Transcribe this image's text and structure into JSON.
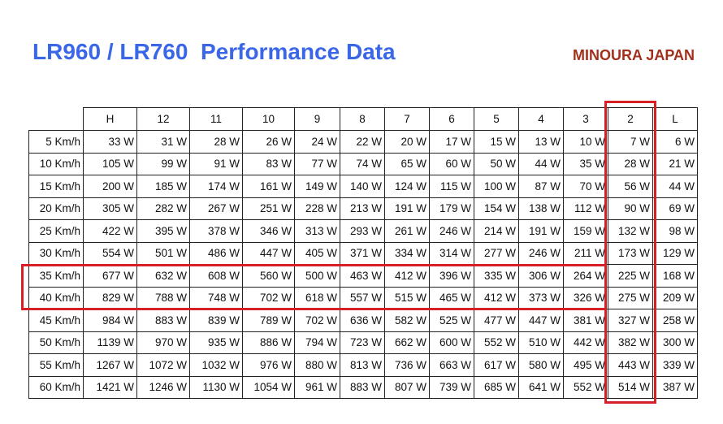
{
  "header": {
    "title": "LR960 / LR760  Performance Data",
    "brand": "MINOURA JAPAN"
  },
  "table": {
    "header": [
      "H",
      "12",
      "11",
      "10",
      "9",
      "8",
      "7",
      "6",
      "5",
      "4",
      "3",
      "2",
      "L"
    ],
    "rows": [
      {
        "label": "5 Km/h",
        "cells": [
          "33 W",
          "31 W",
          "28 W",
          "26 W",
          "24 W",
          "22 W",
          "20 W",
          "17 W",
          "15 W",
          "13 W",
          "10 W",
          "7 W",
          "6 W"
        ]
      },
      {
        "label": "10 Km/h",
        "cells": [
          "105 W",
          "99 W",
          "91 W",
          "83 W",
          "77 W",
          "74 W",
          "65 W",
          "60 W",
          "50 W",
          "44 W",
          "35 W",
          "28 W",
          "21 W"
        ]
      },
      {
        "label": "15 Km/h",
        "cells": [
          "200 W",
          "185 W",
          "174 W",
          "161 W",
          "149 W",
          "140 W",
          "124 W",
          "115 W",
          "100 W",
          "87 W",
          "70 W",
          "56 W",
          "44 W"
        ]
      },
      {
        "label": "20 Km/h",
        "cells": [
          "305 W",
          "282 W",
          "267 W",
          "251 W",
          "228 W",
          "213 W",
          "191 W",
          "179 W",
          "154 W",
          "138 W",
          "112 W",
          "90 W",
          "69 W"
        ]
      },
      {
        "label": "25 Km/h",
        "cells": [
          "422 W",
          "395 W",
          "378 W",
          "346 W",
          "313 W",
          "293 W",
          "261 W",
          "246 W",
          "214 W",
          "191 W",
          "159 W",
          "132 W",
          "98 W"
        ]
      },
      {
        "label": "30 Km/h",
        "cells": [
          "554 W",
          "501 W",
          "486 W",
          "447 W",
          "405 W",
          "371 W",
          "334 W",
          "314 W",
          "277 W",
          "246 W",
          "211 W",
          "173 W",
          "129 W"
        ]
      },
      {
        "label": "35 Km/h",
        "cells": [
          "677 W",
          "632 W",
          "608 W",
          "560 W",
          "500 W",
          "463 W",
          "412 W",
          "396 W",
          "335 W",
          "306 W",
          "264 W",
          "225 W",
          "168 W"
        ]
      },
      {
        "label": "40 Km/h",
        "cells": [
          "829 W",
          "788 W",
          "748 W",
          "702 W",
          "618 W",
          "557 W",
          "515 W",
          "465 W",
          "412 W",
          "373 W",
          "326 W",
          "275 W",
          "209 W"
        ]
      },
      {
        "label": "45 Km/h",
        "cells": [
          "984 W",
          "883 W",
          "839 W",
          "789 W",
          "702 W",
          "636 W",
          "582 W",
          "525 W",
          "477 W",
          "447 W",
          "381 W",
          "327 W",
          "258 W"
        ]
      },
      {
        "label": "50 Km/h",
        "cells": [
          "1139 W",
          "970 W",
          "935 W",
          "886 W",
          "794 W",
          "723 W",
          "662 W",
          "600 W",
          "552 W",
          "510 W",
          "442 W",
          "382 W",
          "300 W"
        ]
      },
      {
        "label": "55 Km/h",
        "cells": [
          "1267 W",
          "1072 W",
          "1032 W",
          "976 W",
          "880 W",
          "813 W",
          "736 W",
          "663 W",
          "617 W",
          "580 W",
          "495 W",
          "443 W",
          "339 W"
        ]
      },
      {
        "label": "60 Km/h",
        "cells": [
          "1421 W",
          "1246 W",
          "1130 W",
          "1054 W",
          "961 W",
          "883 W",
          "807 W",
          "739 W",
          "685 W",
          "641 W",
          "552 W",
          "514 W",
          "387 W"
        ]
      }
    ]
  }
}
